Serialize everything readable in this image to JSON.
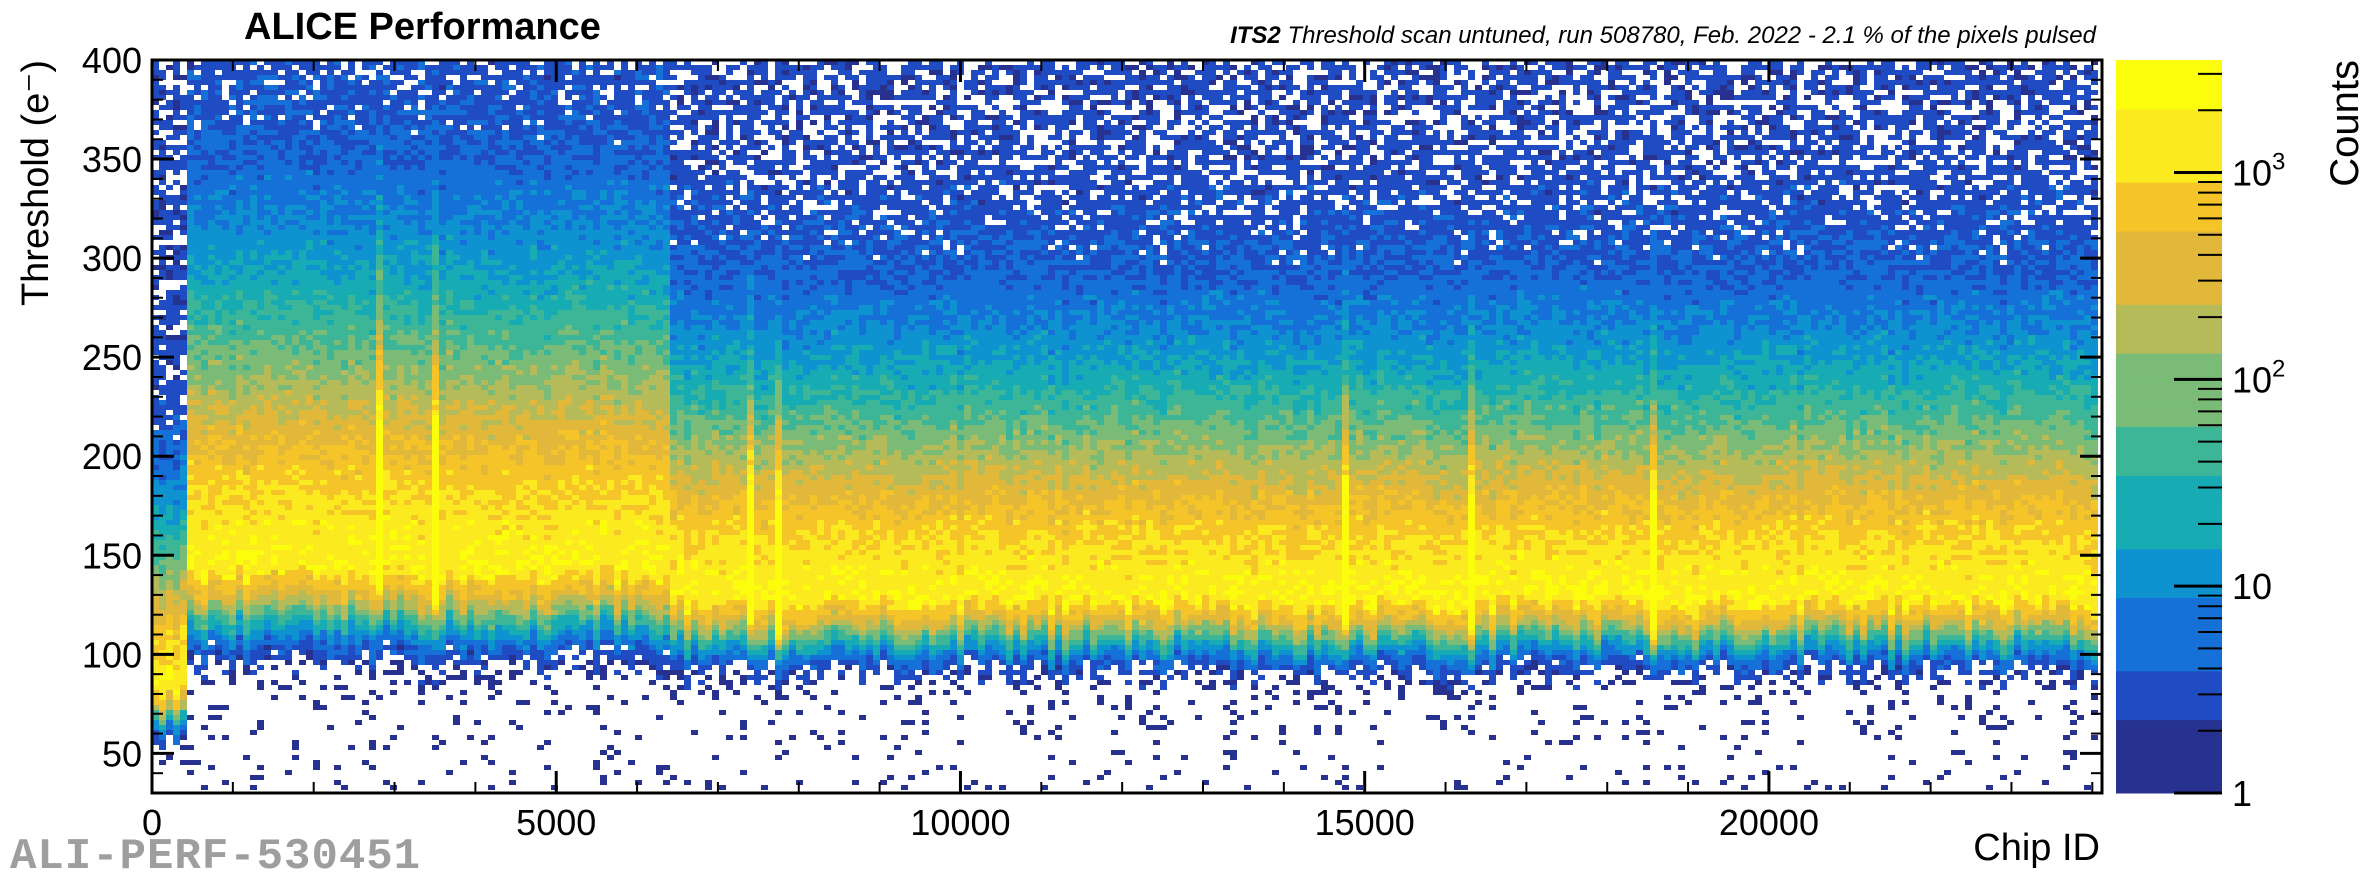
{
  "header": {
    "performance_label": "ALICE Performance",
    "detector": "ITS2",
    "run_description": "Threshold scan untuned, run 508780, Feb. 2022 - 2.1 % of the pixels pulsed"
  },
  "footer": {
    "perf_id": "ALI-PERF-530451"
  },
  "chart_data": {
    "type": "heatmap",
    "title": "ALICE Performance",
    "subtitle": "ITS2 Threshold scan untuned, run 508780, Feb. 2022 - 2.1 % of the pixels pulsed",
    "xlabel": "Chip ID",
    "ylabel": "Threshold (e⁻)",
    "zlabel": "Counts",
    "xlim": [
      0,
      24120
    ],
    "ylim": [
      30,
      400
    ],
    "zlim": [
      1,
      3500
    ],
    "z_log_scale": true,
    "x_ticks": [
      0,
      5000,
      10000,
      15000,
      20000
    ],
    "y_ticks": [
      50,
      100,
      150,
      200,
      250,
      300,
      350,
      400
    ],
    "z_ticks": [
      {
        "value": 1,
        "label": "1"
      },
      {
        "value": 10,
        "label": "10"
      },
      {
        "value": 100,
        "label": "10",
        "exp": "2"
      },
      {
        "value": 1000,
        "label": "10",
        "exp": "3"
      }
    ],
    "grid": false,
    "colormap": [
      "#27318f",
      "#1f4cc2",
      "#1570d8",
      "#0f93d0",
      "#17abb4",
      "#3cb696",
      "#79bb77",
      "#b4bb58",
      "#e2b83a",
      "#f5c428",
      "#faea1f",
      "#fbfd0c"
    ],
    "regions": [
      {
        "x_range": [
          0,
          450
        ],
        "peak_threshold": 80,
        "width": 22
      },
      {
        "x_range": [
          450,
          6430
        ],
        "peak_threshold": 140,
        "width": 38
      },
      {
        "x_range": [
          6430,
          24120
        ],
        "peak_threshold": 125,
        "width": 30
      }
    ]
  },
  "colors": {
    "axis": "#000000",
    "background": "#ffffff",
    "watermark": "#9e9e9e"
  }
}
